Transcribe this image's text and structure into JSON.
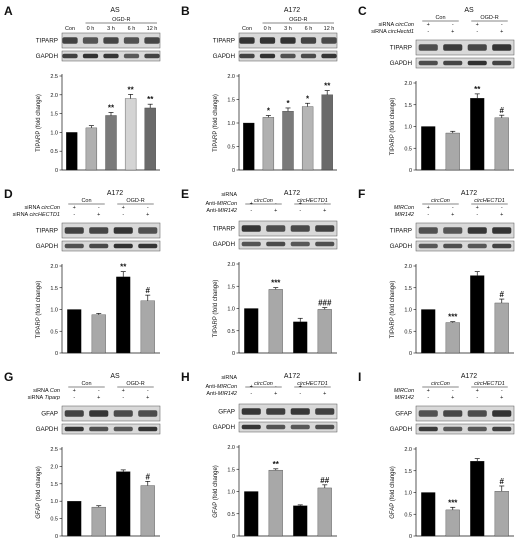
{
  "panels": [
    {
      "id": "A",
      "title": "AS",
      "header": {
        "type": "times",
        "labels": [
          "Con",
          "0 h",
          "3 h",
          "6 h",
          "12 h"
        ],
        "group_label": "OGD-R"
      },
      "blots": [
        "TIPARP",
        "GAPDH"
      ],
      "ylabel": "TIPARP (fold change)",
      "chart_data": {
        "type": "bar",
        "ylim": [
          0,
          2.5
        ],
        "yticks": [
          "0",
          "0.5",
          "1.0",
          "1.5",
          "2.0",
          "2.5"
        ],
        "values": [
          1.0,
          1.12,
          1.45,
          1.9,
          1.65
        ],
        "errors": [
          0.0,
          0.06,
          0.08,
          0.11,
          0.1
        ],
        "colors": [
          "#000000",
          "#b0b0b0",
          "#7a7a7a",
          "#d4d4d4",
          "#6a6a6a"
        ],
        "sig": [
          "",
          "",
          "**",
          "**",
          "**"
        ]
      }
    },
    {
      "id": "B",
      "title": "A172",
      "header": {
        "type": "times",
        "labels": [
          "Con",
          "0 h",
          "3 h",
          "6 h",
          "12 h"
        ],
        "group_label": "OGD-R"
      },
      "blots": [
        "TIPARP",
        "GAPDH"
      ],
      "ylabel": "TIPARP (fold change)",
      "chart_data": {
        "type": "bar",
        "ylim": [
          0,
          2.0
        ],
        "yticks": [
          "0",
          "0.5",
          "1.0",
          "1.5",
          "2.0"
        ],
        "values": [
          1.0,
          1.12,
          1.25,
          1.35,
          1.6
        ],
        "errors": [
          0.0,
          0.04,
          0.07,
          0.07,
          0.09
        ],
        "colors": [
          "#000000",
          "#b0b0b0",
          "#7a7a7a",
          "#b5b5b5",
          "#6a6a6a"
        ],
        "sig": [
          "",
          "*",
          "*",
          "*",
          "**"
        ]
      }
    },
    {
      "id": "C",
      "title": "AS",
      "header": {
        "type": "pm",
        "groups": [
          {
            "label": "Con",
            "italic": false
          },
          {
            "label": "OGD-R",
            "italic": false
          }
        ],
        "rows": [
          {
            "parts": [
              {
                "t": "siRNA ",
                "i": false
              },
              {
                "t": "circCon",
                "i": true
              }
            ],
            "signs": [
              "+",
              "-",
              "+",
              "-"
            ]
          },
          {
            "parts": [
              {
                "t": "siRNA ",
                "i": false
              },
              {
                "t": "circHectd1",
                "i": true
              }
            ],
            "signs": [
              "-",
              "+",
              "-",
              "+"
            ]
          }
        ]
      },
      "blots": [
        "TIPARP",
        "GAPDH"
      ],
      "ylabel": "TIPARP (fold change)",
      "chart_data": {
        "type": "bar",
        "ylim": [
          0,
          2.0
        ],
        "yticks": [
          "0",
          "0.5",
          "1.0",
          "1.5",
          "2.0"
        ],
        "values": [
          1.0,
          0.85,
          1.65,
          1.2
        ],
        "errors": [
          0.0,
          0.04,
          0.1,
          0.06
        ],
        "colors": [
          "#000000",
          "#a8a8a8",
          "#000000",
          "#a8a8a8"
        ],
        "sig": [
          "",
          "",
          "**",
          "#"
        ]
      }
    },
    {
      "id": "D",
      "title": "A172",
      "header": {
        "type": "pm",
        "groups": [
          {
            "label": "Con",
            "italic": false
          },
          {
            "label": "OGD-R",
            "italic": false
          }
        ],
        "rows": [
          {
            "parts": [
              {
                "t": "siRNA ",
                "i": false
              },
              {
                "t": "circCon",
                "i": true
              }
            ],
            "signs": [
              "+",
              "-",
              "+",
              "-"
            ]
          },
          {
            "parts": [
              {
                "t": "siRNA ",
                "i": false
              },
              {
                "t": "circHECTD1",
                "i": true
              }
            ],
            "signs": [
              "-",
              "+",
              "-",
              "+"
            ]
          }
        ]
      },
      "blots": [
        "TIPARP",
        "GAPDH"
      ],
      "ylabel": "TIPARP (fold change)",
      "chart_data": {
        "type": "bar",
        "ylim": [
          0,
          2.0
        ],
        "yticks": [
          "0",
          "0.5",
          "1.0",
          "1.5",
          "2.0"
        ],
        "values": [
          1.0,
          0.88,
          1.75,
          1.2
        ],
        "errors": [
          0.0,
          0.03,
          0.12,
          0.13
        ],
        "colors": [
          "#000000",
          "#a8a8a8",
          "#000000",
          "#a8a8a8"
        ],
        "sig": [
          "",
          "",
          "**",
          "#"
        ]
      }
    },
    {
      "id": "E",
      "title": "A172",
      "header": {
        "type": "pm",
        "groups": [
          {
            "label": "circCon",
            "italic": true
          },
          {
            "label": "circHECTD1",
            "italic": true
          }
        ],
        "rows": [
          {
            "parts": [
              {
                "t": "siRNA",
                "i": false
              }
            ],
            "signs": [
              "",
              "",
              "",
              ""
            ]
          },
          {
            "parts": [
              {
                "t": "Anti-",
                "i": false
              },
              {
                "t": "MIRCon",
                "i": true
              }
            ],
            "signs": [
              "+",
              "-",
              "+",
              "-"
            ]
          },
          {
            "parts": [
              {
                "t": "Anti-",
                "i": false
              },
              {
                "t": "MIR142",
                "i": true
              }
            ],
            "signs": [
              "-",
              "+",
              "-",
              "+"
            ]
          }
        ]
      },
      "blots": [
        "TIPARP",
        "GAPDH"
      ],
      "ylabel": "TIPARP (fold change)",
      "chart_data": {
        "type": "bar",
        "ylim": [
          0,
          2.0
        ],
        "yticks": [
          "0",
          "0.5",
          "1.0",
          "1.5",
          "2.0"
        ],
        "values": [
          1.0,
          1.43,
          0.7,
          0.98
        ],
        "errors": [
          0.0,
          0.04,
          0.08,
          0.04
        ],
        "colors": [
          "#000000",
          "#a8a8a8",
          "#000000",
          "#a8a8a8"
        ],
        "sig": [
          "",
          "***",
          "",
          "###"
        ]
      }
    },
    {
      "id": "F",
      "title": "A172",
      "header": {
        "type": "pm",
        "groups": [
          {
            "label": "circCon",
            "italic": true
          },
          {
            "label": "circHECTD1",
            "italic": true
          }
        ],
        "rows": [
          {
            "parts": [
              {
                "t": "MIRCon",
                "i": true
              }
            ],
            "signs": [
              "+",
              "-",
              "+",
              "-"
            ]
          },
          {
            "parts": [
              {
                "t": "MIR142",
                "i": true
              }
            ],
            "signs": [
              "-",
              "+",
              "-",
              "+"
            ]
          }
        ]
      },
      "blots": [
        "TIPARP",
        "GAPDH"
      ],
      "ylabel": "TIPARP (fold change)",
      "chart_data": {
        "type": "bar",
        "ylim": [
          0,
          2.0
        ],
        "yticks": [
          "0",
          "0.5",
          "1.0",
          "1.5",
          "2.0"
        ],
        "values": [
          1.0,
          0.7,
          1.78,
          1.15
        ],
        "errors": [
          0.0,
          0.02,
          0.09,
          0.09
        ],
        "colors": [
          "#000000",
          "#a8a8a8",
          "#000000",
          "#a8a8a8"
        ],
        "sig": [
          "",
          "***",
          "",
          "#"
        ]
      }
    },
    {
      "id": "G",
      "title": "AS",
      "header": {
        "type": "pm",
        "groups": [
          {
            "label": "Con",
            "italic": false
          },
          {
            "label": "OGD-R",
            "italic": false
          }
        ],
        "rows": [
          {
            "parts": [
              {
                "t": "siRNA ",
                "i": false
              },
              {
                "t": "Con",
                "i": true
              }
            ],
            "signs": [
              "+",
              "-",
              "+",
              "-"
            ]
          },
          {
            "parts": [
              {
                "t": "siRNA ",
                "i": false
              },
              {
                "t": "Tiparp",
                "i": true
              }
            ],
            "signs": [
              "-",
              "+",
              "-",
              "+"
            ]
          }
        ]
      },
      "blots": [
        "GFAP",
        "GAPDH"
      ],
      "ylabel": "GFAP (fold change)",
      "chart_data": {
        "type": "bar",
        "ylim": [
          0,
          2.5
        ],
        "yticks": [
          "0",
          "0.5",
          "1.0",
          "1.5",
          "2.0",
          "2.5"
        ],
        "values": [
          1.0,
          0.83,
          1.85,
          1.45
        ],
        "errors": [
          0.0,
          0.04,
          0.05,
          0.12
        ],
        "colors": [
          "#000000",
          "#a8a8a8",
          "#000000",
          "#a8a8a8"
        ],
        "sig": [
          "",
          "",
          "",
          "#"
        ]
      }
    },
    {
      "id": "H",
      "title": "A172",
      "header": {
        "type": "pm",
        "groups": [
          {
            "label": "circCon",
            "italic": true
          },
          {
            "label": "circHECTD1",
            "italic": true
          }
        ],
        "rows": [
          {
            "parts": [
              {
                "t": "siRNA",
                "i": false
              }
            ],
            "signs": [
              "",
              "",
              "",
              ""
            ]
          },
          {
            "parts": [
              {
                "t": "Anti-",
                "i": false
              },
              {
                "t": "MIRCon",
                "i": true
              }
            ],
            "signs": [
              "+",
              "-",
              "+",
              "-"
            ]
          },
          {
            "parts": [
              {
                "t": "Anti-",
                "i": false
              },
              {
                "t": "MIR142",
                "i": true
              }
            ],
            "signs": [
              "-",
              "+",
              "-",
              "+"
            ]
          }
        ]
      },
      "blots": [
        "GFAP",
        "GAPDH"
      ],
      "ylabel": "GFAP (fold change)",
      "chart_data": {
        "type": "bar",
        "ylim": [
          0,
          2.0
        ],
        "yticks": [
          "0",
          "0.5",
          "1.0",
          "1.5",
          "2.0"
        ],
        "values": [
          1.0,
          1.48,
          0.68,
          1.08
        ],
        "errors": [
          0.0,
          0.03,
          0.02,
          0.07
        ],
        "colors": [
          "#000000",
          "#a8a8a8",
          "#000000",
          "#a8a8a8"
        ],
        "sig": [
          "",
          "**",
          "",
          "##"
        ]
      }
    },
    {
      "id": "I",
      "title": "A172",
      "header": {
        "type": "pm",
        "groups": [
          {
            "label": "circCon",
            "italic": true
          },
          {
            "label": "circHECTD1",
            "italic": true
          }
        ],
        "rows": [
          {
            "parts": [
              {
                "t": "MIRCon",
                "i": true
              }
            ],
            "signs": [
              "+",
              "-",
              "+",
              "-"
            ]
          },
          {
            "parts": [
              {
                "t": "MIR142",
                "i": true
              }
            ],
            "signs": [
              "-",
              "+",
              "-",
              "+"
            ]
          }
        ]
      },
      "blots": [
        "GFAP",
        "GAPDH"
      ],
      "ylabel": "GFAP (fold change)",
      "chart_data": {
        "type": "bar",
        "ylim": [
          0,
          2.0
        ],
        "yticks": [
          "0",
          "0.5",
          "1.0",
          "1.5",
          "2.0"
        ],
        "values": [
          1.0,
          0.6,
          1.72,
          1.03
        ],
        "errors": [
          0.0,
          0.06,
          0.06,
          0.12
        ],
        "colors": [
          "#000000",
          "#a8a8a8",
          "#000000",
          "#a8a8a8"
        ],
        "sig": [
          "",
          "***",
          "",
          "#"
        ]
      }
    }
  ]
}
